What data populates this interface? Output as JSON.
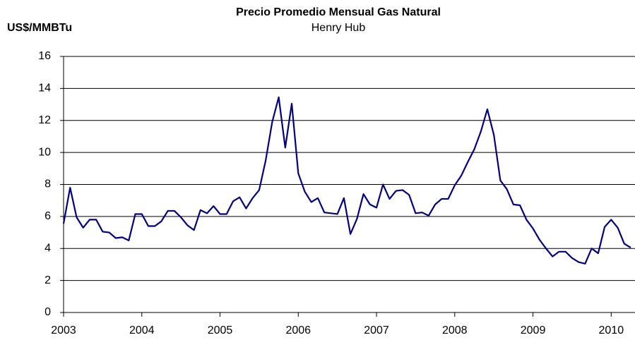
{
  "chart_data": {
    "type": "line",
    "title": "Precio Promedio Mensual Gas Natural",
    "subtitle": "Henry Hub",
    "y_label": "US$/MMBTu",
    "categories": [
      "2003",
      null,
      null,
      null,
      null,
      null,
      null,
      null,
      null,
      null,
      null,
      null,
      "2004",
      null,
      null,
      null,
      null,
      null,
      null,
      null,
      null,
      null,
      null,
      null,
      "2005",
      null,
      null,
      null,
      null,
      null,
      null,
      null,
      null,
      null,
      null,
      null,
      "2006",
      null,
      null,
      null,
      null,
      null,
      null,
      null,
      null,
      null,
      null,
      null,
      "2007",
      null,
      null,
      null,
      null,
      null,
      null,
      null,
      null,
      null,
      null,
      null,
      "2008",
      null,
      null,
      null,
      null,
      null,
      null,
      null,
      null,
      null,
      null,
      null,
      "2009",
      null,
      null,
      null,
      null,
      null,
      null,
      null,
      null,
      null,
      null,
      null,
      "2010",
      null,
      null,
      null
    ],
    "values": [
      5.55,
      7.8,
      5.95,
      5.3,
      5.8,
      5.8,
      5.05,
      5.0,
      4.65,
      4.7,
      4.5,
      6.15,
      6.15,
      5.4,
      5.4,
      5.7,
      6.35,
      6.35,
      5.95,
      5.45,
      5.15,
      6.4,
      6.2,
      6.65,
      6.15,
      6.15,
      6.95,
      7.2,
      6.5,
      7.15,
      7.65,
      9.5,
      11.9,
      13.45,
      10.3,
      13.05,
      8.7,
      7.55,
      6.9,
      7.15,
      6.25,
      6.2,
      6.15,
      7.15,
      4.9,
      5.85,
      7.4,
      6.75,
      6.55,
      8.0,
      7.1,
      7.6,
      7.65,
      7.35,
      6.2,
      6.25,
      6.05,
      6.75,
      7.1,
      7.1,
      7.95,
      8.55,
      9.4,
      10.2,
      11.3,
      12.7,
      11.1,
      8.25,
      7.7,
      6.75,
      6.7,
      5.8,
      5.25,
      4.55,
      4.0,
      3.5,
      3.8,
      3.8,
      3.4,
      3.15,
      3.05,
      4.0,
      3.7,
      5.35,
      5.8,
      5.3,
      4.3,
      4.05
    ],
    "color": "#000080",
    "ylim": [
      0,
      16
    ],
    "yticks": [
      0,
      2,
      4,
      6,
      8,
      10,
      12,
      14,
      16
    ],
    "grid": true
  }
}
